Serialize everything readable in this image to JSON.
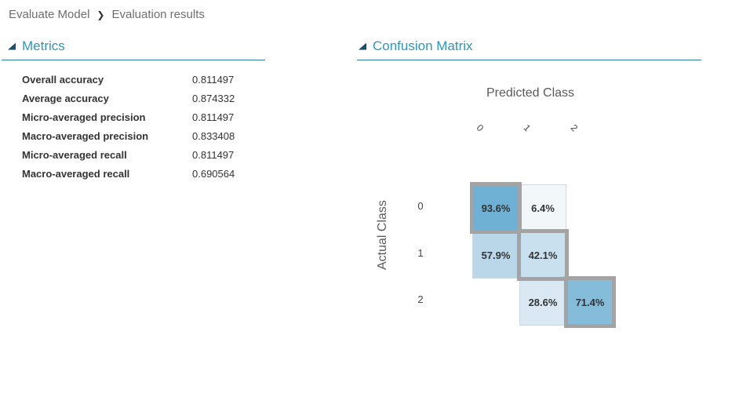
{
  "breadcrumb": {
    "module": "Evaluate Model",
    "separator": "❯",
    "page": "Evaluation results"
  },
  "metrics_panel": {
    "title": "Metrics",
    "rows": [
      {
        "label": "Overall accuracy",
        "value": "0.811497"
      },
      {
        "label": "Average accuracy",
        "value": "0.874332"
      },
      {
        "label": "Micro-averaged precision",
        "value": "0.811497"
      },
      {
        "label": "Macro-averaged precision",
        "value": "0.833408"
      },
      {
        "label": "Micro-averaged recall",
        "value": "0.811497"
      },
      {
        "label": "Macro-averaged recall",
        "value": "0.690564"
      }
    ]
  },
  "confusion_panel": {
    "title": "Confusion Matrix"
  },
  "chart_data": {
    "type": "heatmap",
    "title": "Confusion Matrix",
    "xlabel": "Predicted Class",
    "ylabel": "Actual Class",
    "x_categories": [
      "0",
      "1",
      "2"
    ],
    "y_categories": [
      "0",
      "1",
      "2"
    ],
    "values_percent": [
      [
        93.6,
        6.4,
        null
      ],
      [
        57.9,
        42.1,
        null
      ],
      [
        null,
        28.6,
        71.4
      ]
    ],
    "cell_labels": [
      [
        "93.6%",
        "6.4%",
        ""
      ],
      [
        "57.9%",
        "42.1%",
        ""
      ],
      [
        "",
        "28.6%",
        "71.4%"
      ]
    ],
    "diagonal_highlighted": true,
    "legend_position": "none",
    "grid": false
  },
  "colors": {
    "accent_teal": "#2e96b8",
    "section_underline": "#2b80a4",
    "expander_icon": "#1b4e68",
    "diagonal_border": "#a3a3a3",
    "cell_border": "#ccd9e1",
    "cell_text": "#333333",
    "cells": {
      "r0c0": "#6fb1d4",
      "r0c1": "#f2f7fa",
      "r1c0": "#b9d7e9",
      "r1c1": "#c9e0ee",
      "r2c1": "#d9e8f2",
      "r2c2": "#84bcda"
    }
  }
}
